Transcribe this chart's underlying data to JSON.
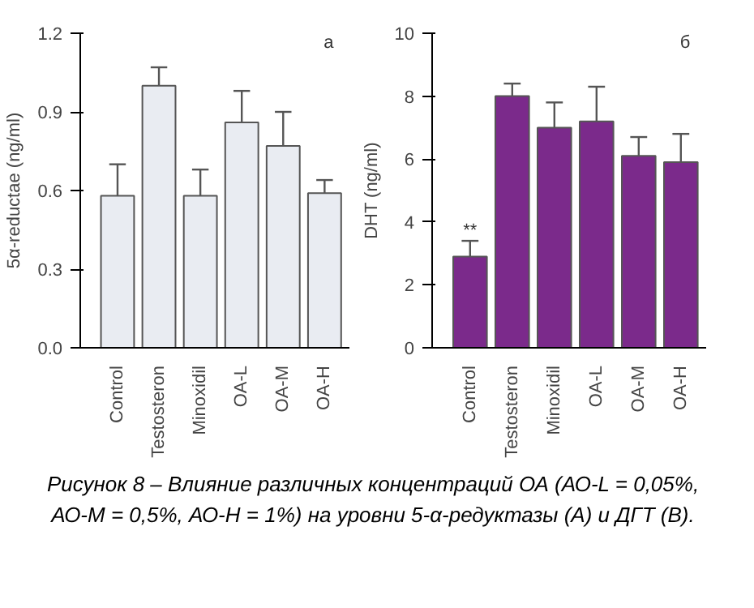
{
  "chart_data": [
    {
      "type": "bar",
      "title": "a",
      "ylabel": "5α-reductae (ng/ml)",
      "categories": [
        "Control",
        "Testosteron",
        "Minoxidil",
        "OA-L",
        "OA-M",
        "OA-H"
      ],
      "values": [
        0.58,
        1.0,
        0.58,
        0.86,
        0.77,
        0.59
      ],
      "errors": [
        0.12,
        0.07,
        0.1,
        0.12,
        0.13,
        0.05
      ],
      "color": "#e9ecf2",
      "ylim": [
        0,
        1.2
      ],
      "yticks": [
        {
          "value": 0,
          "label": "0.0"
        },
        0.3,
        0.6,
        0.9,
        1.2
      ],
      "grid": false
    },
    {
      "type": "bar",
      "title": "б",
      "ylabel": "DHT (ng/ml)",
      "categories": [
        "Control",
        "Testosteron",
        "Minoxidil",
        "OA-L",
        "OA-M",
        "OA-H"
      ],
      "values": [
        2.9,
        8.0,
        7.0,
        7.2,
        6.1,
        5.9
      ],
      "errors": [
        0.5,
        0.4,
        0.8,
        1.1,
        0.6,
        0.9
      ],
      "color": "#7b2a8b",
      "ylim": [
        0,
        10
      ],
      "yticks": [
        0,
        2,
        4,
        6,
        8,
        10
      ],
      "grid": false,
      "annotations": [
        {
          "text": "**",
          "x": "Control",
          "y": 3.4
        },
        "Рисунок 8 – Влияние различных концентраций ОА (АО-L = 0,05%, АО-М = 0,5%, АО-Н = 1%) на уровни 5-α-редуктазы (А) и ДГТ (В)."
      ]
    }
  ]
}
